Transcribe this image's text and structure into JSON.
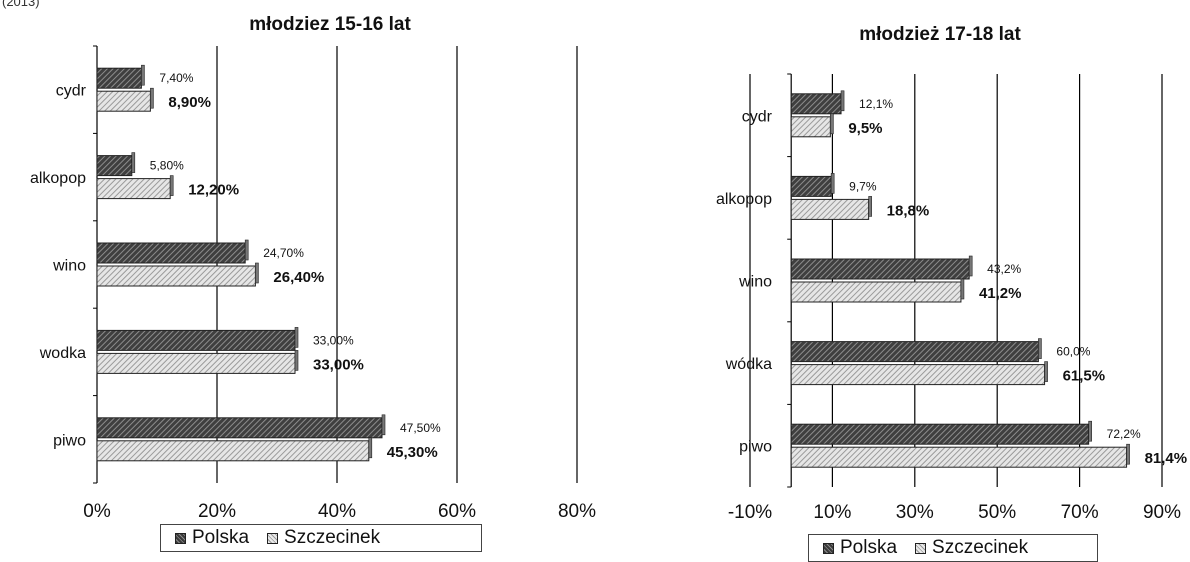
{
  "corner_text": "(2013)",
  "legend_labels": {
    "polska": "Polska",
    "szczecinek": "Szczecinek"
  },
  "colors": {
    "polska_fill": "#3f3f3f",
    "szczecinek_fill": "#d9d9d9",
    "axis": "#000000",
    "grid": "#000000"
  },
  "chart_data": [
    {
      "type": "bar",
      "orientation": "horizontal",
      "title": "młodziez 15-16 lat",
      "categories": [
        "cydr",
        "alkopop",
        "wino",
        "wodka",
        "piwo"
      ],
      "series": [
        {
          "name": "Polska",
          "values": [
            7.4,
            5.8,
            24.7,
            33.0,
            47.5
          ],
          "labels": [
            "7,40%",
            "5,80%",
            "24,70%",
            "33,00%",
            "47,50%"
          ]
        },
        {
          "name": "Szczecinek",
          "values": [
            8.9,
            12.2,
            26.4,
            33.0,
            45.3
          ],
          "labels": [
            "8,90%",
            "12,20%",
            "26,40%",
            "33,00%",
            "45,30%"
          ]
        }
      ],
      "xlim": [
        0,
        80
      ],
      "xticks": [
        0,
        20,
        40,
        60,
        80
      ],
      "xtick_labels": [
        "0%",
        "20%",
        "40%",
        "60%",
        "80%"
      ],
      "grid": true,
      "legend_position": "bottom"
    },
    {
      "type": "bar",
      "orientation": "horizontal",
      "title": "młodzież 17-18 lat",
      "categories": [
        "cydr",
        "alkopop",
        "wino",
        "wódka",
        "piwo"
      ],
      "series": [
        {
          "name": "Polska",
          "values": [
            12.1,
            9.7,
            43.2,
            60.0,
            72.2
          ],
          "labels": [
            "12,1%",
            "9,7%",
            "43,2%",
            "60,0%",
            "72,2%"
          ]
        },
        {
          "name": "Szczecinek",
          "values": [
            9.5,
            18.8,
            41.2,
            61.5,
            81.4
          ],
          "labels": [
            "9,5%",
            "18,8%",
            "41,2%",
            "61,5%",
            "81,4%"
          ]
        }
      ],
      "xlim": [
        -10,
        90
      ],
      "xticks": [
        -10,
        10,
        30,
        50,
        70,
        90
      ],
      "xtick_labels": [
        "-10%",
        "10%",
        "30%",
        "50%",
        "70%",
        "90%"
      ],
      "grid": true,
      "legend_position": "bottom"
    }
  ]
}
